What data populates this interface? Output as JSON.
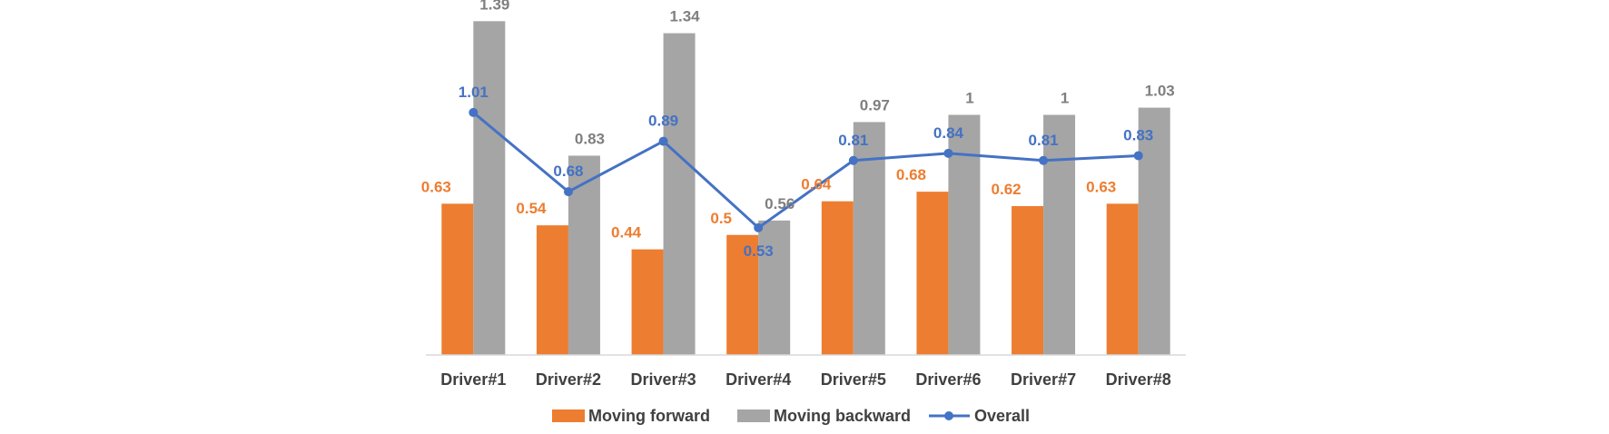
{
  "chart_data": {
    "type": "bar",
    "title": "",
    "xlabel": "",
    "ylabel": "",
    "ylim": [
      0,
      1.4
    ],
    "grid": false,
    "legend_position": "bottom",
    "categories": [
      "Driver#1",
      "Driver#2",
      "Driver#3",
      "Driver#4",
      "Driver#5",
      "Driver#6",
      "Driver#7",
      "Driver#8"
    ],
    "series": [
      {
        "name": "Moving forward",
        "kind": "bar",
        "color": "#ED7D31",
        "values": [
          0.63,
          0.54,
          0.44,
          0.5,
          0.64,
          0.68,
          0.62,
          0.63
        ]
      },
      {
        "name": "Moving backward",
        "kind": "bar",
        "color": "#A5A5A5",
        "values": [
          1.39,
          0.83,
          1.34,
          0.56,
          0.97,
          1,
          1,
          1.03
        ]
      },
      {
        "name": "Overall",
        "kind": "line",
        "color": "#4472C4",
        "values": [
          1.01,
          0.68,
          0.89,
          0.53,
          0.81,
          0.84,
          0.81,
          0.83
        ]
      }
    ]
  }
}
